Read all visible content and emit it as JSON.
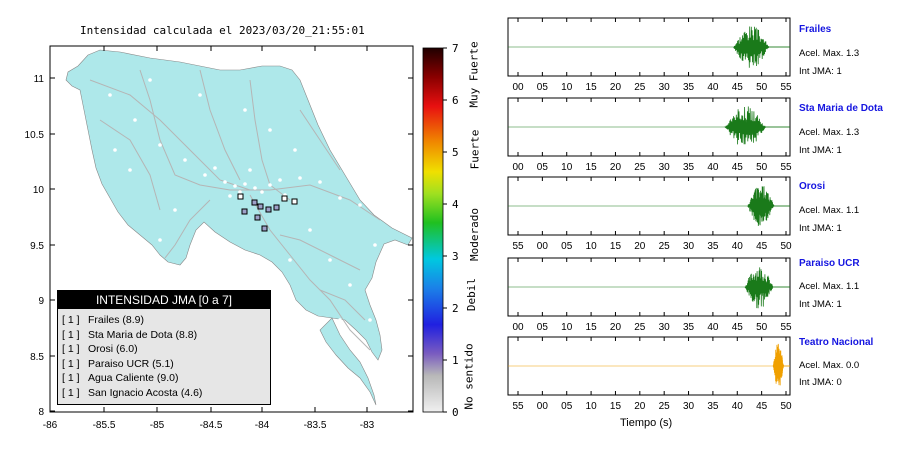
{
  "map": {
    "title": "Intensidad calculada el 2023/03/20_21:55:01",
    "x_ticks": [
      "-86",
      "-85.5",
      "-85",
      "-84.5",
      "-84",
      "-83.5",
      "-83"
    ],
    "y_ticks": [
      "11",
      "10.5",
      "10",
      "9.5",
      "9",
      "8.5",
      "8"
    ],
    "colors": {
      "land": "#aee8ea",
      "roads": "#bbbbbb",
      "towns": "#ffffff"
    }
  },
  "legend": {
    "title": "INTENSIDAD JMA [0 a 7]",
    "items": [
      {
        "bracket": "[ 1 ]",
        "label": "Frailes (8.9)"
      },
      {
        "bracket": "[ 1 ]",
        "label": "Sta Maria de Dota (8.8)"
      },
      {
        "bracket": "[ 1 ]",
        "label": "Orosi (6.0)"
      },
      {
        "bracket": "[ 1 ]",
        "label": "Paraiso UCR (5.1)"
      },
      {
        "bracket": "[ 1 ]",
        "label": "Agua Caliente (9.0)"
      },
      {
        "bracket": "[ 1 ]",
        "label": "San Ignacio Acosta (4.6)"
      }
    ]
  },
  "colorbar": {
    "ticks": [
      "0",
      "1",
      "2",
      "3",
      "4",
      "5",
      "6",
      "7"
    ],
    "labels": [
      "No sentido",
      "Debil",
      "Moderado",
      "Fuerte",
      "Muy Fuerte"
    ]
  },
  "stations": [
    {
      "name": "Frailes",
      "accel": "Acel. Max. 1.3",
      "jma": "Int JMA: 1",
      "ticks": [
        "00",
        "05",
        "10",
        "15",
        "20",
        "25",
        "30",
        "35",
        "40",
        "45",
        "50",
        "55"
      ],
      "color": "#1a7a1a"
    },
    {
      "name": "Sta Maria de Dota",
      "accel": "Acel. Max. 1.3",
      "jma": "Int JMA: 1",
      "ticks": [
        "00",
        "05",
        "10",
        "15",
        "20",
        "25",
        "30",
        "35",
        "40",
        "45",
        "50",
        "55"
      ],
      "color": "#1a7a1a"
    },
    {
      "name": "Orosi",
      "accel": "Acel. Max. 1.1",
      "jma": "Int JMA: 1",
      "ticks": [
        "55",
        "00",
        "05",
        "10",
        "15",
        "20",
        "25",
        "30",
        "35",
        "40",
        "45",
        "50"
      ],
      "color": "#1a7a1a"
    },
    {
      "name": "Paraiso UCR",
      "accel": "Acel. Max. 1.1",
      "jma": "Int JMA: 1",
      "ticks": [
        "00",
        "05",
        "10",
        "15",
        "20",
        "25",
        "30",
        "35",
        "40",
        "45",
        "50",
        "55"
      ],
      "color": "#1a7a1a"
    },
    {
      "name": "Teatro Nacional",
      "accel": "Acel. Max. 0.0",
      "jma": "Int JMA: 0",
      "ticks": [
        "55",
        "00",
        "05",
        "10",
        "15",
        "20",
        "25",
        "30",
        "35",
        "40",
        "45",
        "50"
      ],
      "color": "#f0a000"
    }
  ],
  "x_axis_label": "Tiempo (s)"
}
